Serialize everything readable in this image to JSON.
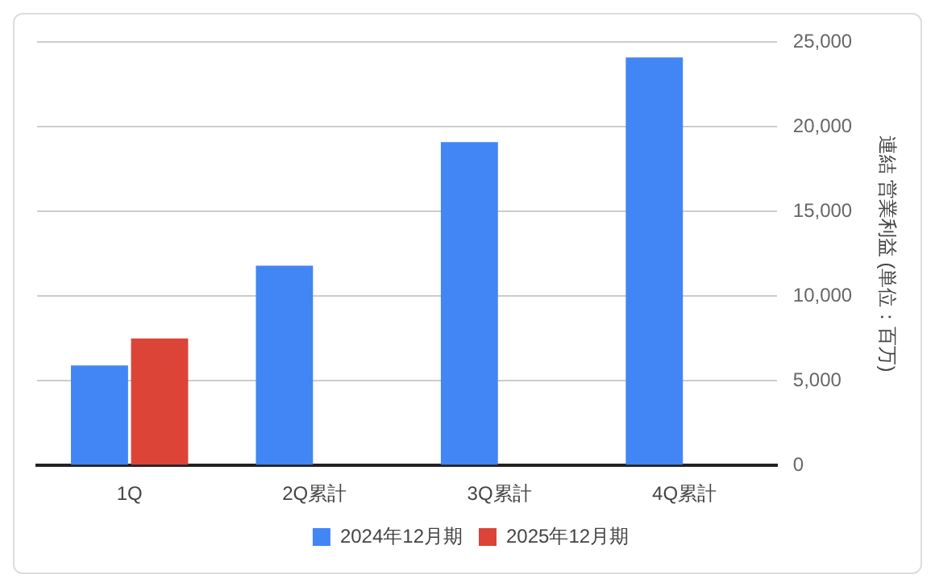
{
  "chart_data": {
    "type": "bar",
    "ylabel": "連結 営業利益 (単位：百万)",
    "categories": [
      "1Q",
      "2Q累計",
      "3Q累計",
      "4Q累計"
    ],
    "series": [
      {
        "name": "2024年12月期",
        "color": "#4285f4",
        "values": [
          5900,
          11800,
          19100,
          24100
        ]
      },
      {
        "name": "2025年12月期",
        "color": "#db4437",
        "values": [
          7500,
          null,
          null,
          null
        ]
      }
    ],
    "ylim": [
      0,
      25000
    ],
    "yticks": [
      {
        "value": 0,
        "label": "0"
      },
      {
        "value": 5000,
        "label": "5,000"
      },
      {
        "value": 10000,
        "label": "10,000"
      },
      {
        "value": 15000,
        "label": "15,000"
      },
      {
        "value": 20000,
        "label": "20,000"
      },
      {
        "value": 25000,
        "label": "25,000"
      }
    ],
    "grid": "y",
    "legend": "bottom"
  }
}
